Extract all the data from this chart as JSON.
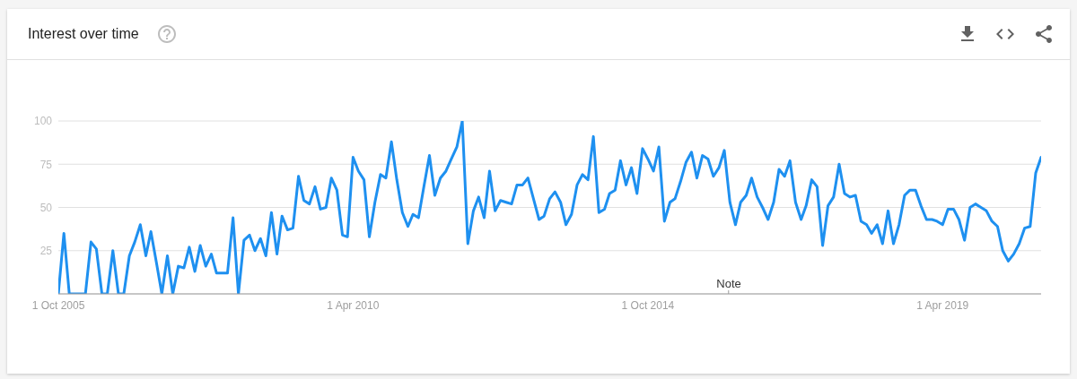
{
  "chart_data": {
    "type": "line",
    "title": "Interest over time",
    "x": [
      "2005-10",
      "2005-11",
      "2005-12",
      "2006-01",
      "2006-02",
      "2006-03",
      "2006-04",
      "2006-05",
      "2006-06",
      "2006-07",
      "2006-08",
      "2006-09",
      "2006-10",
      "2006-11",
      "2006-12",
      "2007-01",
      "2007-02",
      "2007-03",
      "2007-04",
      "2007-05",
      "2007-06",
      "2007-07",
      "2007-08",
      "2007-09",
      "2007-10",
      "2007-11",
      "2007-12",
      "2008-01",
      "2008-02",
      "2008-03",
      "2008-04",
      "2008-05",
      "2008-06",
      "2008-07",
      "2008-08",
      "2008-09",
      "2008-10",
      "2008-11",
      "2008-12",
      "2009-01",
      "2009-02",
      "2009-03",
      "2009-04",
      "2009-05",
      "2009-06",
      "2009-07",
      "2009-08",
      "2009-09",
      "2009-10",
      "2009-11",
      "2009-12",
      "2010-01",
      "2010-02",
      "2010-03",
      "2010-04",
      "2010-05",
      "2010-06",
      "2010-07",
      "2010-08",
      "2010-09",
      "2010-10",
      "2010-11",
      "2010-12",
      "2011-01",
      "2011-02",
      "2011-03",
      "2011-04",
      "2011-05",
      "2011-06",
      "2011-07",
      "2011-08",
      "2011-09",
      "2011-10",
      "2011-11",
      "2011-12",
      "2012-01",
      "2012-02",
      "2012-03",
      "2012-04",
      "2012-05",
      "2012-06",
      "2012-07",
      "2012-08",
      "2012-09",
      "2012-10",
      "2012-11",
      "2012-12",
      "2013-01",
      "2013-02",
      "2013-03",
      "2013-04",
      "2013-05",
      "2013-06",
      "2013-07",
      "2013-08",
      "2013-09",
      "2013-10",
      "2013-11",
      "2013-12",
      "2014-01",
      "2014-02",
      "2014-03",
      "2014-04",
      "2014-05",
      "2014-06",
      "2014-07",
      "2014-08",
      "2014-09",
      "2014-10",
      "2014-11",
      "2014-12",
      "2015-01",
      "2015-02",
      "2015-03",
      "2015-04",
      "2015-05",
      "2015-06",
      "2015-07",
      "2015-08",
      "2015-09",
      "2015-10",
      "2015-11",
      "2015-12",
      "2016-01",
      "2016-02",
      "2016-03",
      "2016-04",
      "2016-05",
      "2016-06",
      "2016-07",
      "2016-08",
      "2016-09",
      "2016-10",
      "2016-11",
      "2016-12",
      "2017-01",
      "2017-02",
      "2017-03",
      "2017-04",
      "2017-05",
      "2017-06",
      "2017-07",
      "2017-08",
      "2017-09",
      "2017-10",
      "2017-11",
      "2017-12",
      "2018-01",
      "2018-02",
      "2018-03",
      "2018-04",
      "2018-05",
      "2018-06",
      "2018-07",
      "2018-08",
      "2018-09",
      "2018-10",
      "2018-11",
      "2018-12",
      "2019-01",
      "2019-02",
      "2019-03",
      "2019-04",
      "2019-05",
      "2019-06",
      "2019-07",
      "2019-08",
      "2019-09",
      "2019-10",
      "2019-11",
      "2019-12",
      "2020-01",
      "2020-02",
      "2020-03",
      "2020-04",
      "2020-05",
      "2020-06",
      "2020-07",
      "2020-08",
      "2020-09",
      "2020-10"
    ],
    "values": [
      0,
      35,
      0,
      0,
      0,
      0,
      30,
      26,
      0,
      0,
      25,
      0,
      0,
      22,
      30,
      40,
      22,
      36,
      18,
      0,
      22,
      0,
      16,
      15,
      27,
      13,
      28,
      16,
      23,
      12,
      12,
      12,
      44,
      0,
      31,
      34,
      25,
      32,
      22,
      47,
      23,
      45,
      37,
      38,
      68,
      54,
      52,
      62,
      49,
      50,
      67,
      60,
      34,
      33,
      79,
      71,
      66,
      33,
      53,
      69,
      67,
      88,
      66,
      47,
      39,
      46,
      44,
      62,
      80,
      57,
      67,
      71,
      78,
      85,
      100,
      29,
      48,
      56,
      44,
      71,
      48,
      54,
      53,
      52,
      63,
      63,
      67,
      55,
      43,
      45,
      55,
      59,
      53,
      40,
      46,
      63,
      69,
      66,
      91,
      47,
      49,
      58,
      60,
      77,
      63,
      73,
      58,
      84,
      78,
      71,
      85,
      42,
      53,
      55,
      65,
      76,
      82,
      67,
      80,
      78,
      68,
      73,
      83,
      53,
      40,
      53,
      57,
      67,
      56,
      50,
      43,
      53,
      72,
      68,
      77,
      53,
      43,
      51,
      66,
      62,
      28,
      51,
      56,
      75,
      58,
      56,
      57,
      42,
      40,
      35,
      40,
      29,
      48,
      29,
      40,
      57,
      60,
      60,
      51,
      43,
      43,
      42,
      40,
      49,
      49,
      43,
      31,
      50,
      52,
      50,
      48,
      42,
      39,
      25,
      19,
      23,
      29,
      38,
      39,
      70,
      79
    ],
    "color": "#1e90f0",
    "xlim": [
      "2005-10",
      "2020-10"
    ],
    "xticks": [
      {
        "value": "2005-10-01",
        "label": "1 Oct 2005"
      },
      {
        "value": "2010-04-01",
        "label": "1 Apr 2010"
      },
      {
        "value": "2014-10-01",
        "label": "1 Oct 2014"
      },
      {
        "value": "2019-04-01",
        "label": "1 Apr 2019"
      }
    ],
    "ylim": [
      0,
      100
    ],
    "yticks": [
      25,
      50,
      75,
      100
    ],
    "grid": "y",
    "annotations": [
      "Note"
    ]
  }
}
